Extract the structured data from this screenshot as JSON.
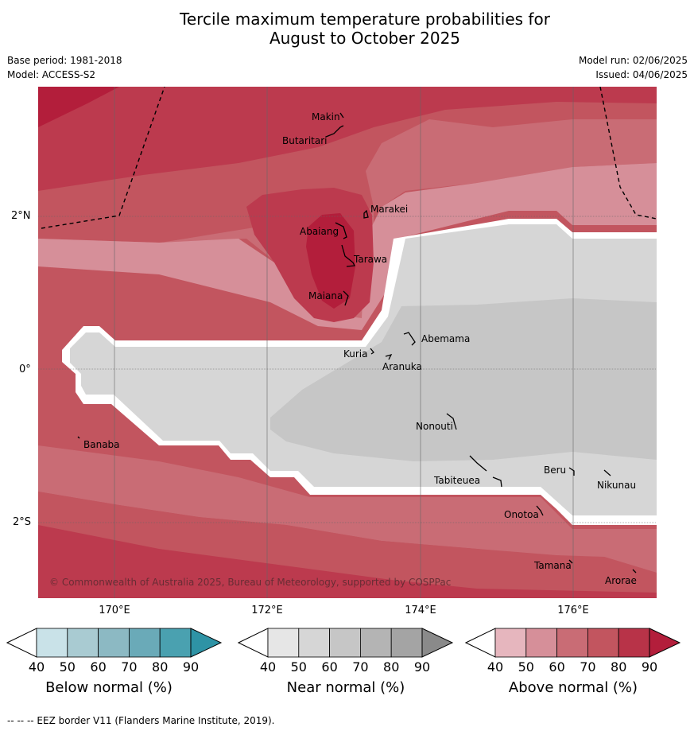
{
  "title_line1": "Tercile maximum temperature probabilities for",
  "title_line2": "August to October 2025",
  "base_period": "Base period: 1981-2018",
  "model": "Model: ACCESS-S2",
  "model_run": "Model run: 02/06/2025",
  "issued": "Issued: 04/06/2025",
  "lat_labels": [
    "2°N",
    "0°",
    "2°S"
  ],
  "lon_labels": [
    "170°E",
    "172°E",
    "174°E",
    "176°E"
  ],
  "places": [
    "Makin",
    "Butaritari",
    "Marakei",
    "Abaiang",
    "Tarawa",
    "Maiana",
    "Abemama",
    "Kuria",
    "Aranuka",
    "Nonouti",
    "Banaba",
    "Tabiteuea",
    "Beru",
    "Nikunau",
    "Onotoa",
    "Tamana",
    "Arorae"
  ],
  "copyright": "© Commonwealth of Australia 2025, Bureau of Meteorology, supported by COSPPac",
  "colorbars": [
    {
      "title": "Below normal (%)",
      "ticks": [
        "40",
        "50",
        "60",
        "70",
        "80",
        "90"
      ],
      "colors": [
        "#c9e2e8",
        "#a9cbd2",
        "#8cb9c3",
        "#6aaab8",
        "#4aa1b0",
        "#2e93a5"
      ]
    },
    {
      "title": "Near normal (%)",
      "ticks": [
        "40",
        "50",
        "60",
        "70",
        "80",
        "90"
      ],
      "colors": [
        "#e6e6e6",
        "#d6d6d6",
        "#c6c6c6",
        "#b4b4b4",
        "#a4a4a4",
        "#8a8a8a"
      ]
    },
    {
      "title": "Above normal (%)",
      "ticks": [
        "40",
        "50",
        "60",
        "70",
        "80",
        "90"
      ],
      "colors": [
        "#e6b6be",
        "#d68f99",
        "#c96c75",
        "#c2555f",
        "#b83348",
        "#b31e3b"
      ]
    }
  ],
  "footer": "--  --  -- EEZ border V11 (Flanders Marine Institute, 2019)."
}
